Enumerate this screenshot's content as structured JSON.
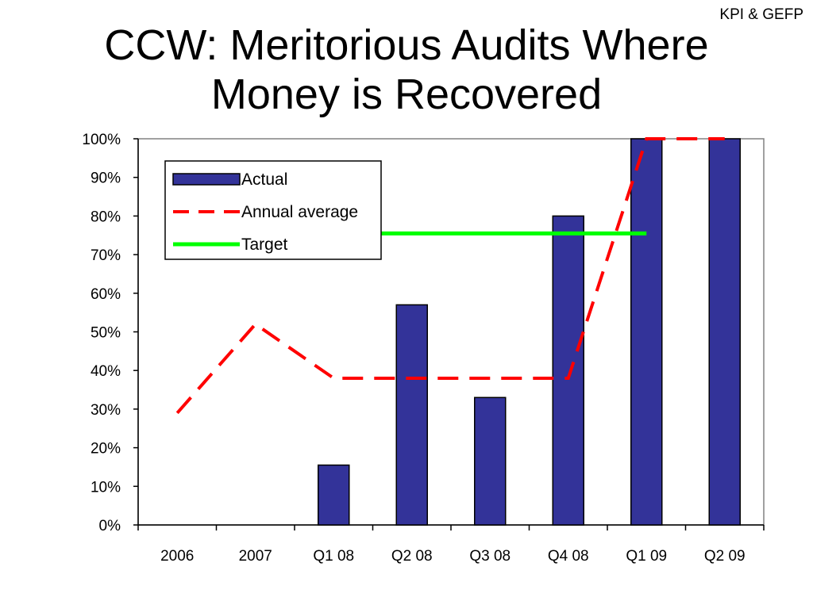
{
  "header": {
    "tag": "KPI & GEFP",
    "title_line1": "CCW: Meritorious Audits Where",
    "title_line2": "Money is Recovered"
  },
  "colors": {
    "bar": "#333399",
    "average": "#ff0000",
    "target": "#00ff00"
  },
  "chart_data": {
    "type": "bar",
    "title": "CCW: Meritorious Audits Where Money is Recovered",
    "categories": [
      "2006",
      "2007",
      "Q1 08",
      "Q2 08",
      "Q3 08",
      "Q4 08",
      "Q1 09",
      "Q2 09"
    ],
    "ylim": [
      0,
      100
    ],
    "yticks": [
      "0%",
      "10%",
      "20%",
      "30%",
      "40%",
      "50%",
      "60%",
      "70%",
      "80%",
      "90%",
      "100%"
    ],
    "grid": false,
    "legend_position": "top-left",
    "series": [
      {
        "name": "Actual",
        "kind": "bar",
        "values": [
          null,
          null,
          15.5,
          57,
          33,
          80,
          100,
          100
        ]
      },
      {
        "name": "Annual average",
        "kind": "line-dashed",
        "values": [
          29,
          52,
          38,
          38,
          38,
          38,
          100,
          100
        ]
      },
      {
        "name": "Target",
        "kind": "line-solid",
        "values": [
          null,
          null,
          75.5,
          75.5,
          75.5,
          75.5,
          75.5,
          null
        ]
      }
    ]
  }
}
